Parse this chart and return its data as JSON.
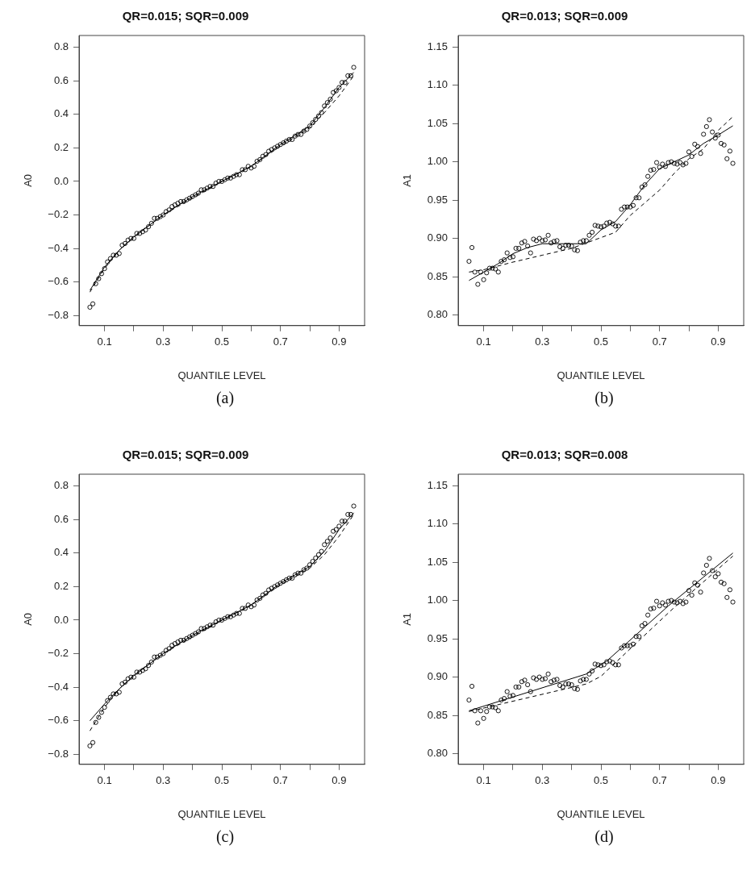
{
  "chart_data": [
    {
      "type": "scatter",
      "title": "QR=0.015; SQR=0.009",
      "xlabel": "QUANTILE LEVEL",
      "ylabel": "A0",
      "annotations": [
        "(a)"
      ],
      "grid": false,
      "legend": false,
      "xlim": [
        0.013,
        0.987
      ],
      "xticks": [
        0.1,
        {
          "value": 0.2,
          "label": null
        },
        0.3,
        {
          "value": 0.4,
          "label": null
        },
        0.5,
        {
          "value": 0.6,
          "label": null
        },
        0.7,
        {
          "value": 0.8,
          "label": null
        },
        0.9
      ],
      "ylim": [
        -0.86,
        0.87
      ],
      "yticks": [
        {
          "value": -0.8,
          "label": "−0.8"
        },
        {
          "value": -0.6,
          "label": "−0.6"
        },
        {
          "value": -0.4,
          "label": "−0.4"
        },
        {
          "value": -0.2,
          "label": "−0.2"
        },
        {
          "value": 0,
          "label": "0.0"
        },
        0.2,
        0.4,
        0.6,
        0.8
      ],
      "series": [
        {
          "type": "scatter",
          "marker": "circle",
          "color": "#000000",
          "x": [
            0.05,
            0.06,
            0.07,
            0.08,
            0.09,
            0.1,
            0.11,
            0.12,
            0.13,
            0.14,
            0.15,
            0.16,
            0.17,
            0.18,
            0.19,
            0.2,
            0.21,
            0.22,
            0.23,
            0.24,
            0.25,
            0.26,
            0.27,
            0.28,
            0.29,
            0.3,
            0.31,
            0.32,
            0.33,
            0.34,
            0.35,
            0.36,
            0.37,
            0.38,
            0.39,
            0.4,
            0.41,
            0.42,
            0.43,
            0.44,
            0.45,
            0.46,
            0.47,
            0.48,
            0.49,
            0.5,
            0.51,
            0.52,
            0.53,
            0.54,
            0.55,
            0.56,
            0.57,
            0.58,
            0.59,
            0.6,
            0.61,
            0.62,
            0.63,
            0.64,
            0.65,
            0.66,
            0.67,
            0.68,
            0.69,
            0.7,
            0.71,
            0.72,
            0.73,
            0.74,
            0.75,
            0.76,
            0.77,
            0.78,
            0.79,
            0.8,
            0.81,
            0.82,
            0.83,
            0.84,
            0.85,
            0.86,
            0.87,
            0.88,
            0.89,
            0.9,
            0.91,
            0.92,
            0.93,
            0.94,
            0.95
          ],
          "values": [
            -0.75,
            -0.73,
            -0.61,
            -0.58,
            -0.55,
            -0.52,
            -0.48,
            -0.46,
            -0.44,
            -0.44,
            -0.43,
            -0.38,
            -0.37,
            -0.35,
            -0.34,
            -0.34,
            -0.31,
            -0.31,
            -0.3,
            -0.29,
            -0.27,
            -0.25,
            -0.22,
            -0.22,
            -0.21,
            -0.2,
            -0.18,
            -0.17,
            -0.15,
            -0.14,
            -0.13,
            -0.12,
            -0.12,
            -0.11,
            -0.1,
            -0.09,
            -0.08,
            -0.07,
            -0.05,
            -0.05,
            -0.04,
            -0.03,
            -0.03,
            -0.01,
            0.0,
            0.0,
            0.01,
            0.02,
            0.02,
            0.03,
            0.04,
            0.04,
            0.07,
            0.07,
            0.09,
            0.08,
            0.09,
            0.12,
            0.13,
            0.15,
            0.16,
            0.18,
            0.19,
            0.2,
            0.21,
            0.22,
            0.23,
            0.24,
            0.25,
            0.25,
            0.27,
            0.28,
            0.28,
            0.3,
            0.31,
            0.33,
            0.35,
            0.37,
            0.39,
            0.41,
            0.45,
            0.47,
            0.49,
            0.53,
            0.54,
            0.56,
            0.59,
            0.59,
            0.63,
            0.63,
            0.68
          ]
        },
        {
          "type": "line",
          "marker": "none",
          "line_style": "solid",
          "color": "#000000",
          "x": [
            0.05,
            0.1,
            0.15,
            0.2,
            0.3,
            0.4,
            0.5,
            0.6,
            0.7,
            0.8,
            0.85,
            0.9,
            0.95
          ],
          "values": [
            -0.65,
            -0.51,
            -0.41,
            -0.33,
            -0.2,
            -0.09,
            0.0,
            0.09,
            0.22,
            0.33,
            0.44,
            0.56,
            0.65
          ]
        },
        {
          "type": "line",
          "marker": "none",
          "line_style": "dashed",
          "color": "#000000",
          "x": [
            0.05,
            0.1,
            0.15,
            0.2,
            0.3,
            0.4,
            0.5,
            0.6,
            0.7,
            0.8,
            0.85,
            0.9,
            0.95
          ],
          "values": [
            -0.66,
            -0.52,
            -0.41,
            -0.33,
            -0.2,
            -0.1,
            0.0,
            0.09,
            0.21,
            0.32,
            0.41,
            0.51,
            0.63
          ]
        }
      ]
    },
    {
      "type": "scatter",
      "title": "QR=0.013; SQR=0.009",
      "xlabel": "QUANTILE LEVEL",
      "ylabel": "A1",
      "annotations": [
        "(b)"
      ],
      "grid": false,
      "legend": false,
      "xlim": [
        0.013,
        0.987
      ],
      "xticks": [
        0.1,
        {
          "value": 0.2,
          "label": null
        },
        0.3,
        {
          "value": 0.4,
          "label": null
        },
        0.5,
        {
          "value": 0.6,
          "label": null
        },
        0.7,
        {
          "value": 0.8,
          "label": null
        },
        0.9
      ],
      "ylim": [
        0.786,
        1.165
      ],
      "yticks": [
        {
          "value": 0.8,
          "label": "0.80"
        },
        0.85,
        {
          "value": 0.9,
          "label": "0.90"
        },
        0.95,
        {
          "value": 1.0,
          "label": "1.00"
        },
        1.05,
        {
          "value": 1.1,
          "label": "1.10"
        },
        1.15
      ],
      "series": [
        {
          "type": "scatter",
          "marker": "circle",
          "color": "#000000",
          "x": [
            0.05,
            0.06,
            0.07,
            0.08,
            0.09,
            0.1,
            0.11,
            0.12,
            0.13,
            0.14,
            0.15,
            0.16,
            0.17,
            0.18,
            0.19,
            0.2,
            0.21,
            0.22,
            0.23,
            0.24,
            0.25,
            0.26,
            0.27,
            0.28,
            0.29,
            0.3,
            0.31,
            0.32,
            0.33,
            0.34,
            0.35,
            0.36,
            0.37,
            0.38,
            0.39,
            0.4,
            0.41,
            0.42,
            0.43,
            0.44,
            0.45,
            0.46,
            0.47,
            0.48,
            0.49,
            0.5,
            0.51,
            0.52,
            0.53,
            0.54,
            0.55,
            0.56,
            0.57,
            0.58,
            0.59,
            0.6,
            0.61,
            0.62,
            0.63,
            0.64,
            0.65,
            0.66,
            0.67,
            0.68,
            0.69,
            0.7,
            0.71,
            0.72,
            0.73,
            0.74,
            0.75,
            0.76,
            0.77,
            0.78,
            0.79,
            0.8,
            0.81,
            0.82,
            0.83,
            0.84,
            0.85,
            0.86,
            0.87,
            0.88,
            0.89,
            0.9,
            0.91,
            0.92,
            0.93,
            0.94,
            0.95
          ],
          "values": [
            0.87,
            0.888,
            0.856,
            0.84,
            0.856,
            0.846,
            0.855,
            0.861,
            0.861,
            0.86,
            0.856,
            0.87,
            0.872,
            0.881,
            0.875,
            0.876,
            0.887,
            0.887,
            0.894,
            0.896,
            0.89,
            0.881,
            0.899,
            0.897,
            0.9,
            0.897,
            0.898,
            0.904,
            0.894,
            0.896,
            0.897,
            0.889,
            0.887,
            0.891,
            0.891,
            0.89,
            0.885,
            0.884,
            0.895,
            0.897,
            0.897,
            0.904,
            0.908,
            0.917,
            0.916,
            0.915,
            0.916,
            0.92,
            0.921,
            0.919,
            0.916,
            0.916,
            0.938,
            0.941,
            0.941,
            0.941,
            0.943,
            0.953,
            0.953,
            0.967,
            0.97,
            0.981,
            0.989,
            0.99,
            0.999,
            0.993,
            0.997,
            0.994,
            0.999,
            1.0,
            0.998,
            0.997,
            0.999,
            0.996,
            0.998,
            1.013,
            1.007,
            1.023,
            1.02,
            1.011,
            1.036,
            1.046,
            1.055,
            1.039,
            1.031,
            1.035,
            1.024,
            1.022,
            1.004,
            1.014,
            0.998
          ]
        },
        {
          "type": "line",
          "marker": "none",
          "line_style": "solid",
          "color": "#000000",
          "x": [
            0.05,
            0.1,
            0.15,
            0.2,
            0.25,
            0.3,
            0.35,
            0.4,
            0.45,
            0.5,
            0.55,
            0.6,
            0.65,
            0.7,
            0.75,
            0.8,
            0.85,
            0.9,
            0.95
          ],
          "values": [
            0.845,
            0.856,
            0.867,
            0.88,
            0.888,
            0.893,
            0.893,
            0.893,
            0.893,
            0.911,
            0.922,
            0.944,
            0.97,
            0.991,
            1.0,
            1.009,
            1.024,
            1.035,
            1.047
          ]
        },
        {
          "type": "line",
          "marker": "none",
          "line_style": "dashed",
          "color": "#000000",
          "x": [
            0.05,
            0.1,
            0.2,
            0.3,
            0.4,
            0.5,
            0.55,
            0.6,
            0.7,
            0.75,
            0.8,
            0.85,
            0.9,
            0.95
          ],
          "values": [
            0.856,
            0.859,
            0.869,
            0.878,
            0.887,
            0.901,
            0.908,
            0.93,
            0.963,
            0.985,
            1.004,
            1.017,
            1.041,
            1.059
          ]
        }
      ]
    },
    {
      "type": "scatter",
      "title": "QR=0.015; SQR=0.009",
      "xlabel": "QUANTILE LEVEL",
      "ylabel": "A0",
      "annotations": [
        "(c)"
      ],
      "grid": false,
      "legend": false,
      "xlim": [
        0.013,
        0.987
      ],
      "xticks": [
        0.1,
        {
          "value": 0.2,
          "label": null
        },
        0.3,
        {
          "value": 0.4,
          "label": null
        },
        0.5,
        {
          "value": 0.6,
          "label": null
        },
        0.7,
        {
          "value": 0.8,
          "label": null
        },
        0.9
      ],
      "ylim": [
        -0.86,
        0.87
      ],
      "yticks": [
        {
          "value": -0.8,
          "label": "−0.8"
        },
        {
          "value": -0.6,
          "label": "−0.6"
        },
        {
          "value": -0.4,
          "label": "−0.4"
        },
        {
          "value": -0.2,
          "label": "−0.2"
        },
        {
          "value": 0,
          "label": "0.0"
        },
        0.2,
        0.4,
        0.6,
        0.8
      ],
      "series": [
        {
          "type": "scatter",
          "marker": "circle",
          "color": "#000000",
          "x": [
            0.05,
            0.06,
            0.07,
            0.08,
            0.09,
            0.1,
            0.11,
            0.12,
            0.13,
            0.14,
            0.15,
            0.16,
            0.17,
            0.18,
            0.19,
            0.2,
            0.21,
            0.22,
            0.23,
            0.24,
            0.25,
            0.26,
            0.27,
            0.28,
            0.29,
            0.3,
            0.31,
            0.32,
            0.33,
            0.34,
            0.35,
            0.36,
            0.37,
            0.38,
            0.39,
            0.4,
            0.41,
            0.42,
            0.43,
            0.44,
            0.45,
            0.46,
            0.47,
            0.48,
            0.49,
            0.5,
            0.51,
            0.52,
            0.53,
            0.54,
            0.55,
            0.56,
            0.57,
            0.58,
            0.59,
            0.6,
            0.61,
            0.62,
            0.63,
            0.64,
            0.65,
            0.66,
            0.67,
            0.68,
            0.69,
            0.7,
            0.71,
            0.72,
            0.73,
            0.74,
            0.75,
            0.76,
            0.77,
            0.78,
            0.79,
            0.8,
            0.81,
            0.82,
            0.83,
            0.84,
            0.85,
            0.86,
            0.87,
            0.88,
            0.89,
            0.9,
            0.91,
            0.92,
            0.93,
            0.94,
            0.95
          ],
          "values": [
            -0.75,
            -0.73,
            -0.61,
            -0.58,
            -0.55,
            -0.52,
            -0.48,
            -0.46,
            -0.44,
            -0.44,
            -0.43,
            -0.38,
            -0.37,
            -0.35,
            -0.34,
            -0.34,
            -0.31,
            -0.31,
            -0.3,
            -0.29,
            -0.27,
            -0.25,
            -0.22,
            -0.22,
            -0.21,
            -0.2,
            -0.18,
            -0.17,
            -0.15,
            -0.14,
            -0.13,
            -0.12,
            -0.12,
            -0.11,
            -0.1,
            -0.09,
            -0.08,
            -0.07,
            -0.05,
            -0.05,
            -0.04,
            -0.03,
            -0.03,
            -0.01,
            0.0,
            0.0,
            0.01,
            0.02,
            0.02,
            0.03,
            0.04,
            0.04,
            0.07,
            0.07,
            0.09,
            0.08,
            0.09,
            0.12,
            0.13,
            0.15,
            0.16,
            0.18,
            0.19,
            0.2,
            0.21,
            0.22,
            0.23,
            0.24,
            0.25,
            0.25,
            0.27,
            0.28,
            0.28,
            0.3,
            0.31,
            0.33,
            0.35,
            0.37,
            0.39,
            0.41,
            0.45,
            0.47,
            0.49,
            0.53,
            0.54,
            0.56,
            0.59,
            0.59,
            0.63,
            0.63,
            0.68
          ]
        },
        {
          "type": "line",
          "marker": "none",
          "line_style": "solid",
          "color": "#000000",
          "x": [
            0.05,
            0.1,
            0.15,
            0.2,
            0.3,
            0.4,
            0.5,
            0.6,
            0.7,
            0.8,
            0.85,
            0.9,
            0.95
          ],
          "values": [
            -0.6,
            -0.5,
            -0.41,
            -0.33,
            -0.2,
            -0.09,
            0.0,
            0.09,
            0.22,
            0.32,
            0.41,
            0.54,
            0.64
          ]
        },
        {
          "type": "line",
          "marker": "none",
          "line_style": "dashed",
          "color": "#000000",
          "x": [
            0.05,
            0.1,
            0.15,
            0.2,
            0.3,
            0.4,
            0.5,
            0.6,
            0.7,
            0.8,
            0.85,
            0.9,
            0.95
          ],
          "values": [
            -0.66,
            -0.52,
            -0.41,
            -0.33,
            -0.2,
            -0.1,
            0.0,
            0.09,
            0.21,
            0.31,
            0.39,
            0.5,
            0.63
          ]
        }
      ]
    },
    {
      "type": "scatter",
      "title": "QR=0.013; SQR=0.008",
      "xlabel": "QUANTILE LEVEL",
      "ylabel": "A1",
      "annotations": [
        "(d)"
      ],
      "grid": false,
      "legend": false,
      "xlim": [
        0.013,
        0.987
      ],
      "xticks": [
        0.1,
        {
          "value": 0.2,
          "label": null
        },
        0.3,
        {
          "value": 0.4,
          "label": null
        },
        0.5,
        {
          "value": 0.6,
          "label": null
        },
        0.7,
        {
          "value": 0.8,
          "label": null
        },
        0.9
      ],
      "ylim": [
        0.786,
        1.165
      ],
      "yticks": [
        {
          "value": 0.8,
          "label": "0.80"
        },
        0.85,
        {
          "value": 0.9,
          "label": "0.90"
        },
        0.95,
        {
          "value": 1.0,
          "label": "1.00"
        },
        1.05,
        {
          "value": 1.1,
          "label": "1.10"
        },
        1.15
      ],
      "series": [
        {
          "type": "scatter",
          "marker": "circle",
          "color": "#000000",
          "x": [
            0.05,
            0.06,
            0.07,
            0.08,
            0.09,
            0.1,
            0.11,
            0.12,
            0.13,
            0.14,
            0.15,
            0.16,
            0.17,
            0.18,
            0.19,
            0.2,
            0.21,
            0.22,
            0.23,
            0.24,
            0.25,
            0.26,
            0.27,
            0.28,
            0.29,
            0.3,
            0.31,
            0.32,
            0.33,
            0.34,
            0.35,
            0.36,
            0.37,
            0.38,
            0.39,
            0.4,
            0.41,
            0.42,
            0.43,
            0.44,
            0.45,
            0.46,
            0.47,
            0.48,
            0.49,
            0.5,
            0.51,
            0.52,
            0.53,
            0.54,
            0.55,
            0.56,
            0.57,
            0.58,
            0.59,
            0.6,
            0.61,
            0.62,
            0.63,
            0.64,
            0.65,
            0.66,
            0.67,
            0.68,
            0.69,
            0.7,
            0.71,
            0.72,
            0.73,
            0.74,
            0.75,
            0.76,
            0.77,
            0.78,
            0.79,
            0.8,
            0.81,
            0.82,
            0.83,
            0.84,
            0.85,
            0.86,
            0.87,
            0.88,
            0.89,
            0.9,
            0.91,
            0.92,
            0.93,
            0.94,
            0.95
          ],
          "values": [
            0.87,
            0.888,
            0.856,
            0.84,
            0.856,
            0.846,
            0.855,
            0.861,
            0.861,
            0.86,
            0.856,
            0.87,
            0.872,
            0.881,
            0.875,
            0.876,
            0.887,
            0.887,
            0.894,
            0.896,
            0.89,
            0.881,
            0.899,
            0.897,
            0.9,
            0.897,
            0.898,
            0.904,
            0.894,
            0.896,
            0.897,
            0.889,
            0.887,
            0.891,
            0.891,
            0.89,
            0.885,
            0.884,
            0.895,
            0.897,
            0.897,
            0.904,
            0.908,
            0.917,
            0.916,
            0.915,
            0.916,
            0.92,
            0.921,
            0.919,
            0.916,
            0.916,
            0.938,
            0.941,
            0.941,
            0.941,
            0.943,
            0.953,
            0.953,
            0.967,
            0.97,
            0.981,
            0.989,
            0.99,
            0.999,
            0.993,
            0.997,
            0.994,
            0.999,
            1.0,
            0.998,
            0.997,
            0.999,
            0.996,
            0.998,
            1.013,
            1.007,
            1.023,
            1.02,
            1.011,
            1.036,
            1.046,
            1.055,
            1.039,
            1.031,
            1.035,
            1.024,
            1.022,
            1.004,
            1.014,
            0.998
          ]
        },
        {
          "type": "line",
          "marker": "none",
          "line_style": "solid",
          "color": "#000000",
          "x": [
            0.05,
            0.45,
            0.52,
            0.73,
            0.95
          ],
          "values": [
            0.856,
            0.904,
            0.921,
            0.993,
            1.062
          ]
        },
        {
          "type": "line",
          "marker": "none",
          "line_style": "dashed",
          "color": "#000000",
          "x": [
            0.05,
            0.45,
            0.5,
            0.55,
            0.75,
            0.95
          ],
          "values": [
            0.855,
            0.891,
            0.901,
            0.919,
            0.991,
            1.058
          ]
        }
      ]
    }
  ]
}
